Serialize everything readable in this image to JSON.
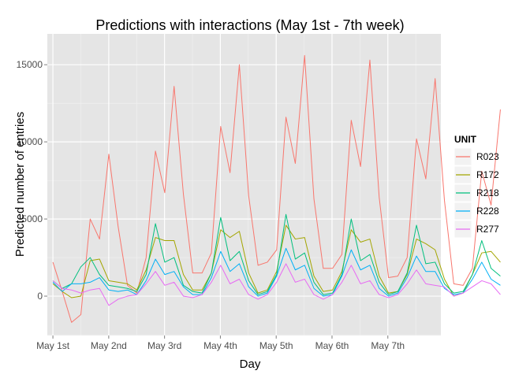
{
  "chart_data": {
    "type": "line",
    "title": "Predictions with interactions (May 1st - 7th week)",
    "xlabel": "Day",
    "ylabel": "Predicted number of entries",
    "x_ticks": [
      "May 1st",
      "May 2nd",
      "May 3rd",
      "May 4th",
      "May 5th",
      "May 6th",
      "May 7th"
    ],
    "y_ticks": [
      0,
      5000,
      10000,
      15000
    ],
    "y_tick_labels": [
      "0",
      "5000",
      "10000",
      "15000"
    ],
    "ylim": [
      -2550,
      17000
    ],
    "x_range_days": [
      -0.1,
      6.95
    ],
    "x_step_days": 0.167,
    "grid": true,
    "legend_position": "right",
    "legend_title": "UNIT",
    "series": [
      {
        "name": "R023",
        "color": "#F8766D",
        "values": [
          2200,
          300,
          -1700,
          -1200,
          5000,
          3700,
          9200,
          4500,
          700,
          200,
          2500,
          9400,
          6700,
          13600,
          6600,
          1500,
          1500,
          2800,
          11000,
          8000,
          15000,
          6500,
          2000,
          2200,
          3000,
          11600,
          8600,
          15600,
          6300,
          1800,
          1800,
          2700,
          11400,
          8400,
          15300,
          6400,
          1200,
          1300,
          2500,
          10200,
          7600,
          14100,
          6200,
          800,
          700,
          1800,
          8100,
          5900,
          12100
        ]
      },
      {
        "name": "R172",
        "color": "#A3A500",
        "values": [
          800,
          300,
          -100,
          0,
          2300,
          2400,
          1000,
          900,
          800,
          400,
          1700,
          3800,
          3600,
          3600,
          1400,
          400,
          400,
          1500,
          4300,
          3800,
          4200,
          1500,
          200,
          400,
          1600,
          4600,
          3700,
          3800,
          1300,
          300,
          400,
          1600,
          4300,
          3500,
          3700,
          1300,
          200,
          300,
          1400,
          3700,
          3400,
          3000,
          1100,
          0,
          200,
          1400,
          2800,
          2900,
          2200
        ]
      },
      {
        "name": "R218",
        "color": "#00BF7D",
        "values": [
          1000,
          500,
          800,
          1900,
          2500,
          1400,
          700,
          600,
          500,
          300,
          1400,
          4700,
          2200,
          2500,
          700,
          300,
          200,
          1500,
          5100,
          2300,
          2900,
          1000,
          100,
          300,
          1400,
          5300,
          2400,
          2800,
          900,
          100,
          200,
          1400,
          5000,
          2300,
          2700,
          900,
          100,
          300,
          1500,
          4600,
          2100,
          2200,
          800,
          200,
          300,
          1400,
          3600,
          1800,
          1300
        ]
      },
      {
        "name": "R228",
        "color": "#00B0F6",
        "values": [
          900,
          300,
          800,
          800,
          900,
          1200,
          400,
          300,
          400,
          100,
          1000,
          2400,
          1400,
          1600,
          600,
          100,
          100,
          1200,
          2900,
          1600,
          2100,
          600,
          0,
          200,
          1300,
          3100,
          1700,
          2000,
          500,
          0,
          100,
          1300,
          3000,
          1700,
          2000,
          500,
          0,
          200,
          1200,
          2600,
          1600,
          1600,
          500,
          100,
          200,
          1100,
          2200,
          1100,
          700
        ]
      },
      {
        "name": "R277",
        "color": "#E76BF3",
        "values": [
          1000,
          500,
          400,
          200,
          400,
          500,
          -600,
          -200,
          0,
          100,
          800,
          1600,
          700,
          900,
          0,
          -100,
          100,
          900,
          2000,
          800,
          1100,
          100,
          -200,
          100,
          900,
          2100,
          900,
          1100,
          100,
          -200,
          100,
          900,
          2000,
          800,
          1000,
          100,
          -100,
          100,
          800,
          1700,
          800,
          700,
          600,
          0,
          200,
          600,
          1000,
          800,
          100
        ]
      }
    ]
  }
}
